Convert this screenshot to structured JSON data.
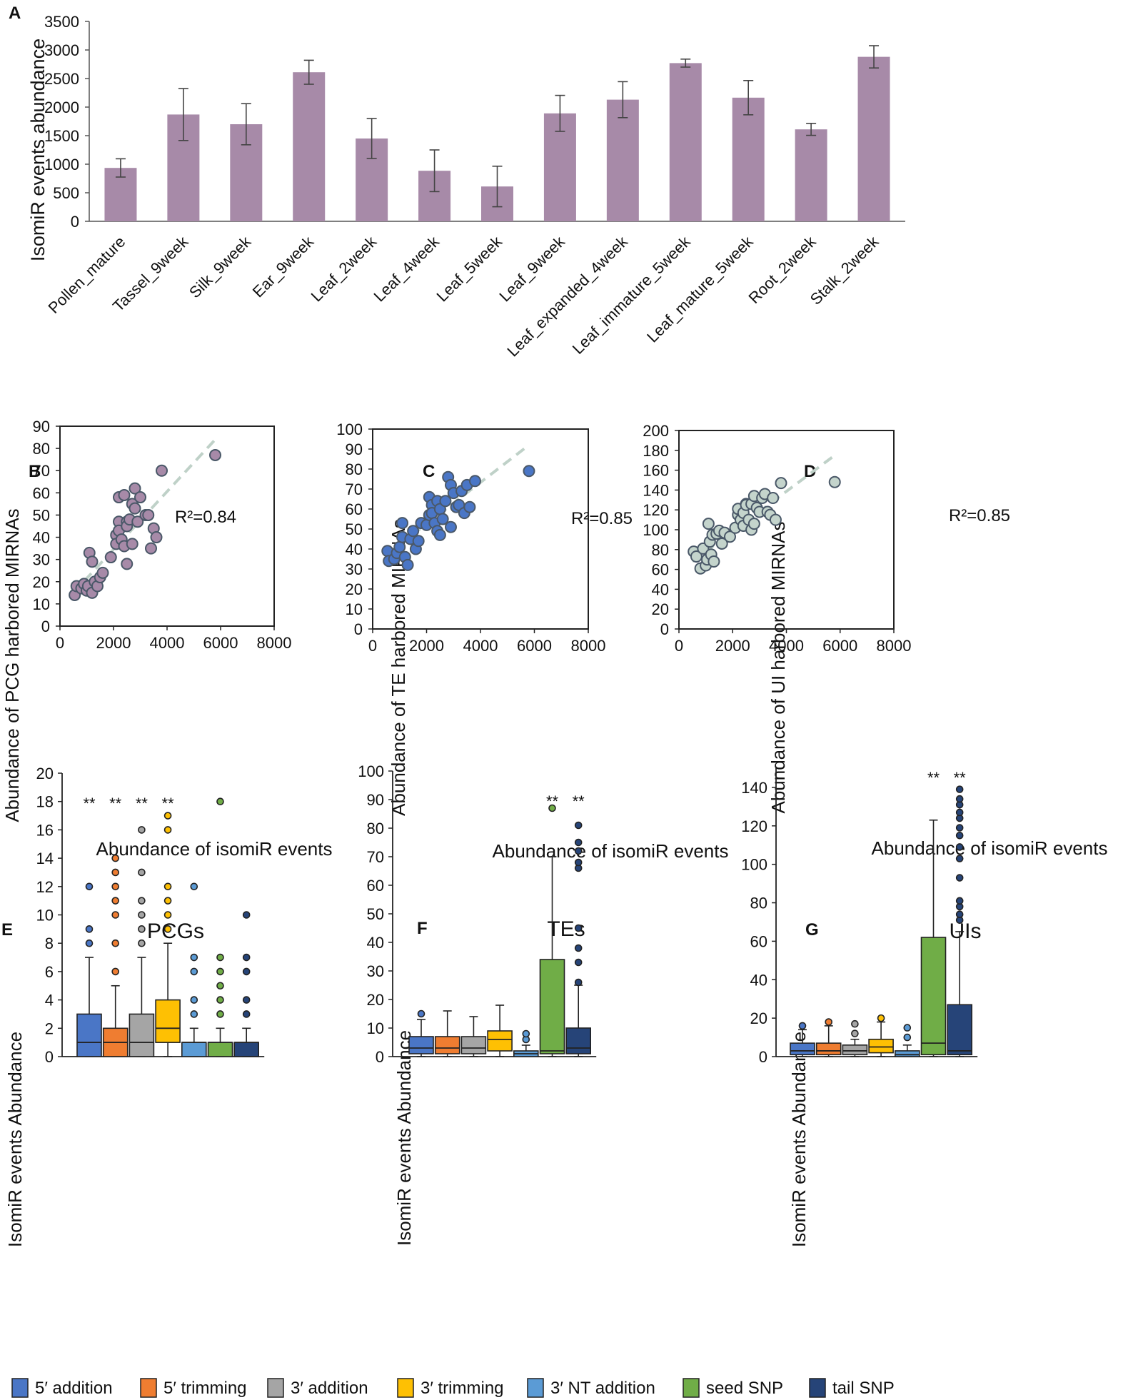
{
  "chart_data": [
    {
      "id": "A",
      "type": "bar",
      "panel_label": "A",
      "ylabel": "IsomiR events abundance",
      "ylim": [
        0,
        3500
      ],
      "yticks": [
        0,
        500,
        1000,
        1500,
        2000,
        2500,
        3000,
        3500
      ],
      "categories": [
        "Pollen_mature",
        "Tassel_9week",
        "Silk_9week",
        "Ear_9week",
        "Leaf_2week",
        "Leaf_4week",
        "Leaf_5week",
        "Leaf_9week",
        "Leaf_expanded_4week",
        "Leaf_immature_5week",
        "Leaf_mature_5week",
        "Root_2week",
        "Stalk_2week"
      ],
      "values": [
        935,
        1870,
        1700,
        2610,
        1450,
        885,
        610,
        1890,
        2130,
        2770,
        2165,
        1610,
        2880
      ],
      "errors": [
        160,
        455,
        360,
        210,
        350,
        365,
        355,
        315,
        315,
        70,
        300,
        105,
        195
      ],
      "bar_color": "#a78aa8"
    },
    {
      "id": "B",
      "type": "scatter",
      "panel_label": "B",
      "title": "R²=0.84",
      "xlabel": "Abundance of isomiR events",
      "ylabel": "Abundance of PCG harbored MIRNAs",
      "xlim": [
        0,
        8000
      ],
      "xticks": [
        0,
        2000,
        4000,
        6000,
        8000
      ],
      "ylim": [
        0,
        90
      ],
      "yticks": [
        0,
        10,
        20,
        30,
        40,
        50,
        60,
        70,
        80,
        90
      ],
      "fill": "#a78aa8",
      "trend": {
        "x": [
          500,
          5800
        ],
        "y": [
          15,
          84
        ]
      },
      "points": [
        [
          550,
          14
        ],
        [
          620,
          18
        ],
        [
          800,
          17
        ],
        [
          900,
          19
        ],
        [
          1000,
          16
        ],
        [
          1050,
          18
        ],
        [
          1100,
          33
        ],
        [
          1200,
          15
        ],
        [
          1200,
          29
        ],
        [
          1300,
          20
        ],
        [
          1400,
          18
        ],
        [
          1500,
          22
        ],
        [
          1600,
          24
        ],
        [
          1900,
          31
        ],
        [
          2100,
          41
        ],
        [
          2100,
          37
        ],
        [
          2200,
          47
        ],
        [
          2200,
          58
        ],
        [
          2200,
          43
        ],
        [
          2300,
          39
        ],
        [
          2400,
          59
        ],
        [
          2400,
          36
        ],
        [
          2500,
          47
        ],
        [
          2500,
          45
        ],
        [
          2500,
          28
        ],
        [
          2600,
          48
        ],
        [
          2700,
          37
        ],
        [
          2700,
          55
        ],
        [
          2800,
          53
        ],
        [
          2800,
          62
        ],
        [
          2900,
          47
        ],
        [
          3000,
          58
        ],
        [
          3200,
          50
        ],
        [
          3300,
          50
        ],
        [
          3400,
          35
        ],
        [
          3500,
          44
        ],
        [
          3600,
          40
        ],
        [
          3800,
          70
        ],
        [
          5800,
          77
        ]
      ]
    },
    {
      "id": "C",
      "type": "scatter",
      "panel_label": "C",
      "title": "R²=0.85",
      "xlabel": "Abundance of isomiR events",
      "ylabel": "Abundance of TE harbored MIRNAs",
      "xlim": [
        0,
        8000
      ],
      "xticks": [
        0,
        2000,
        4000,
        6000,
        8000
      ],
      "ylim": [
        0,
        100
      ],
      "yticks": [
        0,
        10,
        20,
        30,
        40,
        50,
        60,
        70,
        80,
        90,
        100
      ],
      "fill": "#4a76c6",
      "trend": {
        "x": [
          500,
          5800
        ],
        "y": [
          37,
          92
        ]
      },
      "points": [
        [
          550,
          39
        ],
        [
          600,
          34
        ],
        [
          800,
          35
        ],
        [
          900,
          38
        ],
        [
          1000,
          41
        ],
        [
          1100,
          53
        ],
        [
          1100,
          46
        ],
        [
          1200,
          36
        ],
        [
          1300,
          32
        ],
        [
          1400,
          45
        ],
        [
          1500,
          49
        ],
        [
          1600,
          40
        ],
        [
          1700,
          44
        ],
        [
          1800,
          53
        ],
        [
          2000,
          52
        ],
        [
          2100,
          57
        ],
        [
          2100,
          66
        ],
        [
          2200,
          62
        ],
        [
          2200,
          58
        ],
        [
          2300,
          53
        ],
        [
          2400,
          64
        ],
        [
          2400,
          49
        ],
        [
          2500,
          60
        ],
        [
          2500,
          47
        ],
        [
          2600,
          55
        ],
        [
          2700,
          64
        ],
        [
          2800,
          76
        ],
        [
          2900,
          72
        ],
        [
          2900,
          51
        ],
        [
          3000,
          68
        ],
        [
          3100,
          61
        ],
        [
          3200,
          62
        ],
        [
          3300,
          69
        ],
        [
          3400,
          58
        ],
        [
          3500,
          72
        ],
        [
          3600,
          61
        ],
        [
          3800,
          74
        ],
        [
          5800,
          79
        ]
      ]
    },
    {
      "id": "D",
      "type": "scatter",
      "panel_label": "D",
      "title": "R²=0.85",
      "xlabel": "Abundance of isomiR events",
      "ylabel": "Abundance of UI harbored MIRNAs",
      "xlim": [
        0,
        8000
      ],
      "xticks": [
        0,
        2000,
        4000,
        6000,
        8000
      ],
      "ylim": [
        0,
        200
      ],
      "yticks": [
        0,
        20,
        40,
        60,
        80,
        100,
        120,
        140,
        160,
        180,
        200
      ],
      "fill": "#c4d4cc",
      "trend": {
        "x": [
          500,
          5800
        ],
        "y": [
          68,
          175
        ]
      },
      "points": [
        [
          550,
          78
        ],
        [
          650,
          73
        ],
        [
          800,
          61
        ],
        [
          900,
          81
        ],
        [
          1000,
          64
        ],
        [
          1050,
          70
        ],
        [
          1100,
          106
        ],
        [
          1150,
          88
        ],
        [
          1200,
          75
        ],
        [
          1250,
          95
        ],
        [
          1300,
          68
        ],
        [
          1400,
          96
        ],
        [
          1500,
          99
        ],
        [
          1600,
          86
        ],
        [
          1700,
          97
        ],
        [
          1900,
          93
        ],
        [
          2100,
          102
        ],
        [
          2200,
          115
        ],
        [
          2200,
          121
        ],
        [
          2300,
          110
        ],
        [
          2400,
          104
        ],
        [
          2400,
          117
        ],
        [
          2500,
          126
        ],
        [
          2500,
          125
        ],
        [
          2600,
          110
        ],
        [
          2700,
          126
        ],
        [
          2700,
          100
        ],
        [
          2800,
          106
        ],
        [
          2800,
          134
        ],
        [
          2900,
          122
        ],
        [
          3000,
          118
        ],
        [
          3100,
          132
        ],
        [
          3200,
          136
        ],
        [
          3300,
          118
        ],
        [
          3400,
          115
        ],
        [
          3500,
          132
        ],
        [
          3600,
          110
        ],
        [
          3800,
          147
        ],
        [
          5800,
          148
        ]
      ]
    },
    {
      "id": "E",
      "type": "box",
      "panel_label": "E",
      "title": "PCGs",
      "ylabel": "IsomiR events Abundance",
      "ylim": [
        0,
        20
      ],
      "yticks": [
        0,
        2,
        4,
        6,
        8,
        10,
        12,
        14,
        16,
        18,
        20
      ],
      "boxes": [
        {
          "q1": 0,
          "median": 1,
          "q3": 3,
          "whisker_low": 0,
          "whisker_high": 7,
          "outliers": [
            8,
            9,
            12
          ],
          "sig": "**"
        },
        {
          "q1": 0,
          "median": 1,
          "q3": 2,
          "whisker_low": 0,
          "whisker_high": 5,
          "outliers": [
            6,
            8,
            10,
            11,
            12,
            13,
            14
          ],
          "sig": "**"
        },
        {
          "q1": 0,
          "median": 1,
          "q3": 3,
          "whisker_low": 0,
          "whisker_high": 7,
          "outliers": [
            8,
            9,
            10,
            11,
            13,
            16
          ],
          "sig": "**"
        },
        {
          "q1": 1,
          "median": 2,
          "q3": 4,
          "whisker_low": 0,
          "whisker_high": 8,
          "outliers": [
            9,
            10,
            11,
            12,
            16,
            17
          ],
          "sig": "**"
        },
        {
          "q1": 0,
          "median": 1,
          "q3": 1,
          "whisker_low": 0,
          "whisker_high": 2,
          "outliers": [
            3,
            4,
            6,
            7,
            12
          ],
          "sig": ""
        },
        {
          "q1": 0,
          "median": 1,
          "q3": 1,
          "whisker_low": 0,
          "whisker_high": 2,
          "outliers": [
            3,
            4,
            5,
            6,
            7,
            18
          ],
          "sig": ""
        },
        {
          "q1": 0,
          "median": 1,
          "q3": 1,
          "whisker_low": 0,
          "whisker_high": 2,
          "outliers": [
            3,
            4,
            6,
            7,
            10
          ],
          "sig": ""
        }
      ]
    },
    {
      "id": "F",
      "type": "box",
      "panel_label": "F",
      "title": "TEs",
      "ylabel": "IsomiR events Abundance",
      "ylim": [
        0,
        100
      ],
      "yticks": [
        0,
        10,
        20,
        30,
        40,
        50,
        60,
        70,
        80,
        90,
        100
      ],
      "boxes": [
        {
          "q1": 1,
          "median": 3,
          "q3": 7,
          "whisker_low": 0,
          "whisker_high": 13,
          "outliers": [
            15
          ],
          "sig": ""
        },
        {
          "q1": 1,
          "median": 3,
          "q3": 7,
          "whisker_low": 0,
          "whisker_high": 16,
          "outliers": [],
          "sig": ""
        },
        {
          "q1": 1,
          "median": 3,
          "q3": 7,
          "whisker_low": 0,
          "whisker_high": 14,
          "outliers": [],
          "sig": ""
        },
        {
          "q1": 2,
          "median": 6,
          "q3": 9,
          "whisker_low": 0,
          "whisker_high": 18,
          "outliers": [],
          "sig": ""
        },
        {
          "q1": 0,
          "median": 1,
          "q3": 2,
          "whisker_low": 0,
          "whisker_high": 4,
          "outliers": [
            6,
            8
          ],
          "sig": ""
        },
        {
          "q1": 1,
          "median": 2,
          "q3": 34,
          "whisker_low": 0,
          "whisker_high": 70,
          "outliers": [
            87
          ],
          "sig": "**"
        },
        {
          "q1": 1,
          "median": 3,
          "q3": 10,
          "whisker_low": 0,
          "whisker_high": 25,
          "outliers": [
            26,
            33,
            38,
            45,
            66,
            68,
            72,
            75,
            81
          ],
          "sig": "**"
        }
      ]
    },
    {
      "id": "G",
      "type": "box",
      "panel_label": "G",
      "title": "UIs",
      "ylabel": "IsomiR events Abundance",
      "ylim": [
        0,
        150
      ],
      "yticks": [
        0,
        20,
        40,
        60,
        80,
        100,
        120,
        140
      ],
      "boxes": [
        {
          "q1": 1,
          "median": 3,
          "q3": 7,
          "whisker_low": 0,
          "whisker_high": 14,
          "outliers": [
            16
          ],
          "sig": ""
        },
        {
          "q1": 1,
          "median": 3,
          "q3": 7,
          "whisker_low": 0,
          "whisker_high": 16,
          "outliers": [
            18
          ],
          "sig": ""
        },
        {
          "q1": 1,
          "median": 3,
          "q3": 6,
          "whisker_low": 0,
          "whisker_high": 9,
          "outliers": [
            12,
            17
          ],
          "sig": ""
        },
        {
          "q1": 2,
          "median": 5,
          "q3": 9,
          "whisker_low": 0,
          "whisker_high": 18,
          "outliers": [
            20
          ],
          "sig": ""
        },
        {
          "q1": 0,
          "median": 1,
          "q3": 3,
          "whisker_low": 0,
          "whisker_high": 6,
          "outliers": [
            10,
            15
          ],
          "sig": ""
        },
        {
          "q1": 1,
          "median": 7,
          "q3": 62,
          "whisker_low": 0,
          "whisker_high": 123,
          "outliers": [],
          "sig": "**"
        },
        {
          "q1": 1,
          "median": 3,
          "q3": 27,
          "whisker_low": 0,
          "whisker_high": 65,
          "outliers": [
            71,
            74,
            78,
            81,
            93,
            103,
            109,
            115,
            119,
            124,
            127,
            131,
            134,
            139
          ],
          "sig": "**"
        }
      ]
    }
  ],
  "legend": {
    "items": [
      {
        "label": "5′ addition",
        "color": "#4a76c6"
      },
      {
        "label": "5′ trimming",
        "color": "#ef7d31"
      },
      {
        "label": "3′ addition",
        "color": "#a5a5a5"
      },
      {
        "label": "3′ trimming",
        "color": "#fec003"
      },
      {
        "label": "3′ NT addition",
        "color": "#5b9bd5"
      },
      {
        "label": "seed SNP",
        "color": "#70ad47"
      },
      {
        "label": "tail SNP",
        "color": "#264478"
      }
    ]
  },
  "colors": {
    "trend": "#bfd1c8",
    "stroke": "#4a5868"
  }
}
